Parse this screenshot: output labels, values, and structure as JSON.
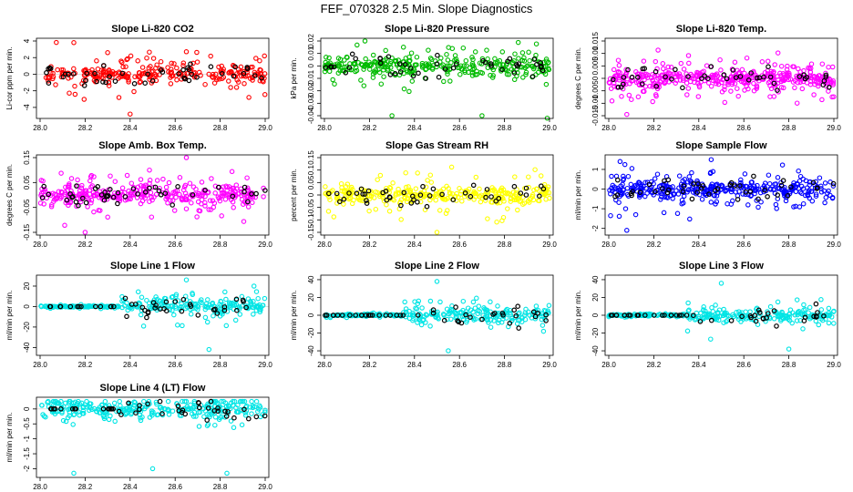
{
  "figure": {
    "title": "FEF_070328  2.5 Min. Slope Diagnostics"
  },
  "colors": {
    "highlight": "#000000"
  },
  "chart_data": [
    {
      "id": "co2",
      "type": "scatter",
      "title": "Slope Li-820 CO2",
      "ylabel": "Li-cor ppm per min.",
      "xlim": [
        28.0,
        29.0
      ],
      "ylim": [
        -5,
        4
      ],
      "yticks": [
        -4,
        -2,
        0,
        2,
        4
      ],
      "xticks": [
        28.0,
        28.2,
        28.4,
        28.6,
        28.8,
        29.0
      ],
      "color": "#ff0000",
      "seed": 11,
      "n": 260,
      "points": [
        [
          28.15,
          3.8
        ],
        [
          28.4,
          -4.8
        ],
        [
          28.65,
          2.7
        ],
        [
          28.35,
          -2.8
        ],
        [
          28.3,
          2.6
        ]
      ]
    },
    {
      "id": "press",
      "type": "scatter",
      "title": "Slope Li-820 Pressure",
      "ylabel": "kPa per min.",
      "xlim": [
        28.0,
        29.0
      ],
      "ylim": [
        -0.04,
        0.02
      ],
      "yticks": [
        -0.04,
        -0.03,
        -0.02,
        -0.01,
        0.0,
        0.01,
        0.02
      ],
      "xticks": [
        28.0,
        28.2,
        28.4,
        28.6,
        28.8,
        29.0
      ],
      "color": "#00bb00",
      "seed": 22,
      "n": 320,
      "points": [
        [
          28.3,
          -0.04
        ],
        [
          28.7,
          -0.04
        ],
        [
          28.99,
          -0.042
        ],
        [
          28.18,
          0.02
        ]
      ]
    },
    {
      "id": "temp",
      "type": "scatter",
      "title": "Slope Li-820 Temp.",
      "ylabel": "degrees C per min.",
      "xlim": [
        28.0,
        29.0
      ],
      "ylim": [
        -0.015,
        0.015
      ],
      "yticks": [
        -0.015,
        -0.01,
        -0.005,
        0.0,
        0.005,
        0.01,
        0.015
      ],
      "xticks": [
        28.0,
        28.2,
        28.4,
        28.6,
        28.8,
        29.0
      ],
      "color": "#ff00ff",
      "seed": 33,
      "n": 420,
      "points": [
        [
          28.08,
          -0.0145
        ]
      ]
    },
    {
      "id": "amb",
      "type": "scatter",
      "title": "Slope Amb. Box Temp.",
      "ylabel": "degrees C per min.",
      "xlim": [
        28.0,
        29.0
      ],
      "ylim": [
        -0.15,
        0.15
      ],
      "yticks": [
        -0.15,
        -0.05,
        0.05,
        0.15
      ],
      "xticks": [
        28.0,
        28.2,
        28.4,
        28.6,
        28.8,
        29.0
      ],
      "color": "#ff00ff",
      "seed": 44,
      "n": 340,
      "points": [
        [
          28.2,
          -0.15
        ],
        [
          28.65,
          0.15
        ]
      ]
    },
    {
      "id": "rh",
      "type": "scatter",
      "title": "Slope Gas Stream RH",
      "ylabel": "percent per min.",
      "xlim": [
        28.0,
        29.0
      ],
      "ylim": [
        -0.15,
        0.15
      ],
      "yticks": [
        -0.15,
        -0.1,
        -0.05,
        0.0,
        0.05,
        0.1,
        0.15
      ],
      "xticks": [
        28.0,
        28.2,
        28.4,
        28.6,
        28.8,
        29.0
      ],
      "color": "#ffff00",
      "seed": 55,
      "n": 320,
      "points": [
        [
          28.5,
          -0.15
        ]
      ]
    },
    {
      "id": "flow",
      "type": "scatter",
      "title": "Slope Sample Flow",
      "ylabel": "ml/min per min.",
      "xlim": [
        28.0,
        29.0
      ],
      "ylim": [
        -2.2,
        1.6
      ],
      "yticks": [
        -2,
        -1,
        0,
        1
      ],
      "xticks": [
        28.0,
        28.2,
        28.4,
        28.6,
        28.8,
        29.0
      ],
      "color": "#0000ff",
      "seed": 66,
      "n": 360,
      "points": [
        [
          28.08,
          -2.1
        ],
        [
          28.12,
          -1.3
        ],
        [
          28.05,
          1.4
        ]
      ]
    },
    {
      "id": "line1",
      "type": "scatter",
      "title": "Slope Line 1 Flow",
      "ylabel": "ml/min per min.",
      "xlim": [
        28.0,
        29.0
      ],
      "ylim": [
        -45,
        28
      ],
      "yticks": [
        -40,
        -20,
        0,
        20
      ],
      "xticks": [
        28.0,
        28.2,
        28.4,
        28.6,
        28.8,
        29.0
      ],
      "color": "#00e5e5",
      "seed": 77,
      "n": 300,
      "points": [
        [
          28.75,
          -42
        ],
        [
          28.65,
          26
        ]
      ]
    },
    {
      "id": "line2",
      "type": "scatter",
      "title": "Slope Line 2 Flow",
      "ylabel": "ml/min per min.",
      "xlim": [
        28.0,
        29.0
      ],
      "ylim": [
        -42,
        42
      ],
      "yticks": [
        -40,
        -20,
        0,
        20,
        40
      ],
      "xticks": [
        28.0,
        28.2,
        28.4,
        28.6,
        28.8,
        29.0
      ],
      "color": "#00e5e5",
      "seed": 88,
      "n": 300,
      "points": [
        [
          28.5,
          38
        ],
        [
          28.55,
          -40
        ]
      ]
    },
    {
      "id": "line3",
      "type": "scatter",
      "title": "Slope Line 3 Flow",
      "ylabel": "ml/min per min.",
      "xlim": [
        28.0,
        29.0
      ],
      "ylim": [
        -42,
        42
      ],
      "yticks": [
        -40,
        -20,
        0,
        20,
        40
      ],
      "xticks": [
        28.0,
        28.2,
        28.4,
        28.6,
        28.8,
        29.0
      ],
      "color": "#00e5e5",
      "seed": 99,
      "n": 300,
      "points": [
        [
          28.5,
          36
        ],
        [
          28.8,
          -38
        ]
      ]
    },
    {
      "id": "line4",
      "type": "scatter",
      "title": "Slope Line 4 (LT) Flow",
      "ylabel": "ml/min per min.",
      "xlim": [
        28.0,
        29.0
      ],
      "ylim": [
        -2.2,
        0.3
      ],
      "yticks": [
        -2.0,
        -1.5,
        -1.0,
        -0.5,
        0.0
      ],
      "xticks": [
        28.0,
        28.2,
        28.4,
        28.6,
        28.8,
        29.0
      ],
      "color": "#00e5e5",
      "seed": 110,
      "n": 300,
      "points": [
        [
          28.15,
          -2.15
        ],
        [
          28.5,
          -2.0
        ],
        [
          28.83,
          -2.15
        ]
      ]
    }
  ]
}
